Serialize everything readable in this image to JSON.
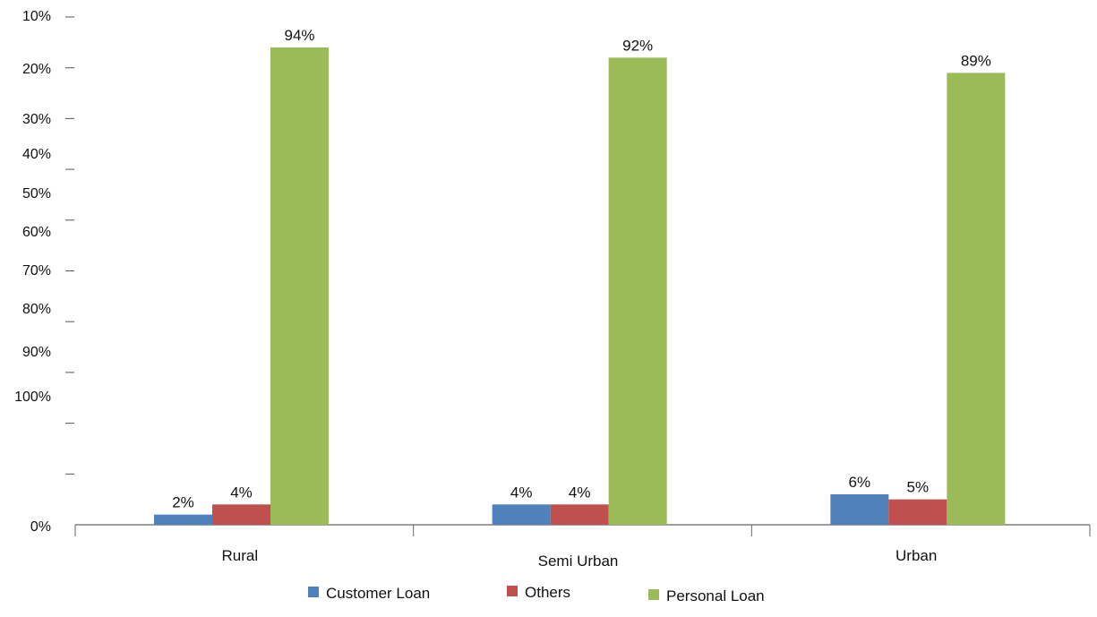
{
  "chart_data": {
    "type": "bar",
    "title": "",
    "xlabel": "",
    "ylabel": "",
    "ylim": [
      0,
      100
    ],
    "categories": [
      "Rural",
      "Semi Urban",
      "Urban"
    ],
    "series": [
      {
        "name": "Customer Loan",
        "color": "#4F81BD",
        "values": [
          2,
          4,
          6
        ],
        "labels": [
          "2%",
          "4%",
          "6%"
        ]
      },
      {
        "name": "Others",
        "color": "#C0504D",
        "values": [
          4,
          4,
          5
        ],
        "labels": [
          "4%",
          "4%",
          "5%"
        ]
      },
      {
        "name": "Personal Loan",
        "color": "#9BBB59",
        "values": [
          94,
          92,
          89
        ],
        "labels": [
          "94%",
          "92%",
          "89%"
        ]
      }
    ],
    "y_tick_labels": [
      "0%",
      "10%",
      "20%",
      "30%",
      "40%",
      "50%",
      "60%",
      "70%",
      "80%",
      "90%",
      "100%"
    ],
    "grid": false,
    "legend_position": "bottom"
  }
}
